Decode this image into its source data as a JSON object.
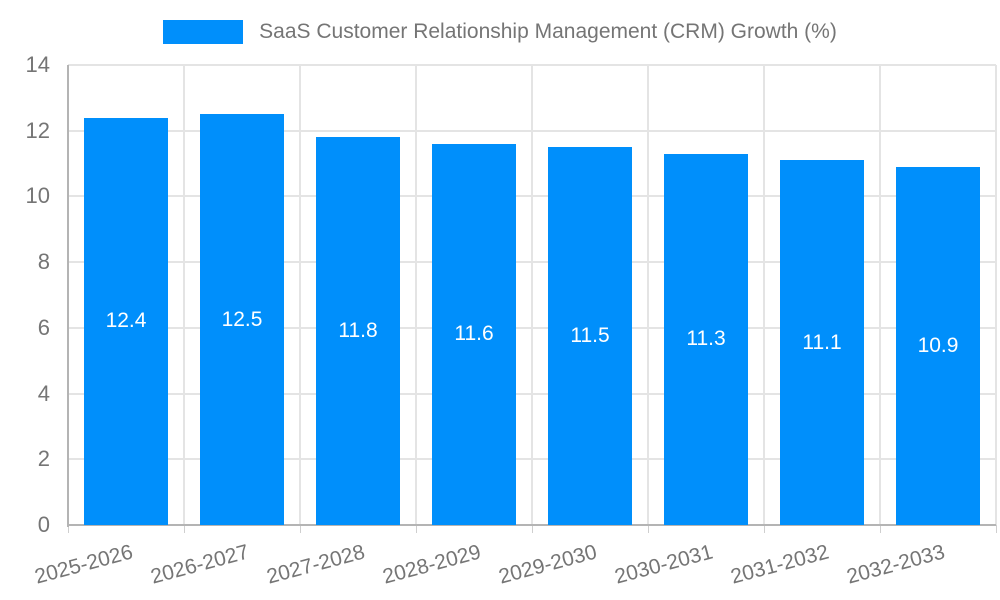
{
  "legend": {
    "label": "SaaS Customer Relationship Management (CRM) Growth (%)"
  },
  "chart_data": {
    "type": "bar",
    "title": "SaaS Customer Relationship Management (CRM) Growth (%)",
    "categories": [
      "2025-2026",
      "2026-2027",
      "2027-2028",
      "2028-2029",
      "2029-2030",
      "2030-2031",
      "2031-2032",
      "2032-2033"
    ],
    "values": [
      12.4,
      12.5,
      11.8,
      11.6,
      11.5,
      11.3,
      11.1,
      10.9
    ],
    "data_labels": [
      "12.4",
      "12.5",
      "11.8",
      "11.6",
      "11.5",
      "11.3",
      "11.1",
      "10.9"
    ],
    "xlabel": "",
    "ylabel": "",
    "ylim": [
      0,
      14
    ],
    "ytick_step": 2,
    "yticks": [
      "0",
      "2",
      "4",
      "6",
      "8",
      "10",
      "12",
      "14"
    ],
    "grid": true,
    "legend_position": "top",
    "colors": {
      "bar": "#008FFB",
      "data_label": "#ffffff",
      "axis_text": "#757575",
      "grid": "#e4e4e4",
      "axis_line": "#b4b4b4",
      "tick": "#cfcfcf",
      "background": "#ffffff"
    }
  }
}
